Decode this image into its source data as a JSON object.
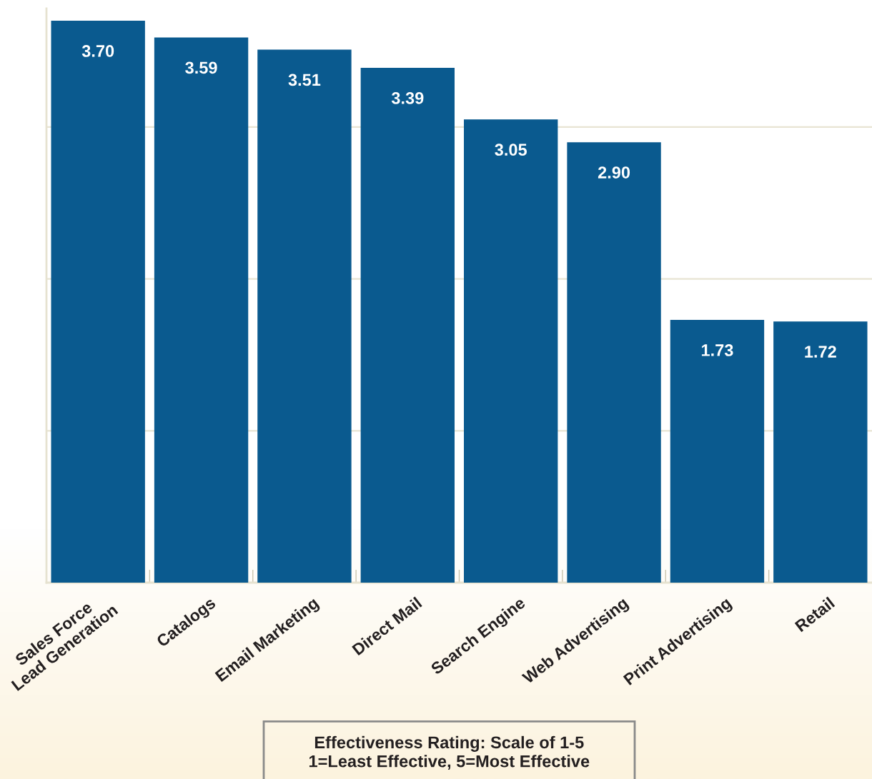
{
  "chart_data": {
    "type": "bar",
    "categories": [
      "Sales Force\nLead Generation",
      "Catalogs",
      "Email Marketing",
      "Direct Mail",
      "Search Engine",
      "Web Advertising",
      "Print Advertising",
      "Retail"
    ],
    "values": [
      3.7,
      3.59,
      3.51,
      3.39,
      3.05,
      2.9,
      1.73,
      1.72
    ],
    "value_labels": [
      "3.70",
      "3.59",
      "3.51",
      "3.39",
      "3.05",
      "2.90",
      "1.73",
      "1.72"
    ],
    "color": "#0a5a8f",
    "ylim": [
      0,
      3.78
    ],
    "yticks": [
      {
        "value": 1,
        "label": null
      },
      {
        "value": 2,
        "label": null
      },
      {
        "value": 3,
        "label": null
      }
    ],
    "grid": "y",
    "tick_labels": "x",
    "annotations": [
      "Effectiveness Rating: Scale of 1-5\n1=Least Effective, 5=Most Effective"
    ]
  }
}
